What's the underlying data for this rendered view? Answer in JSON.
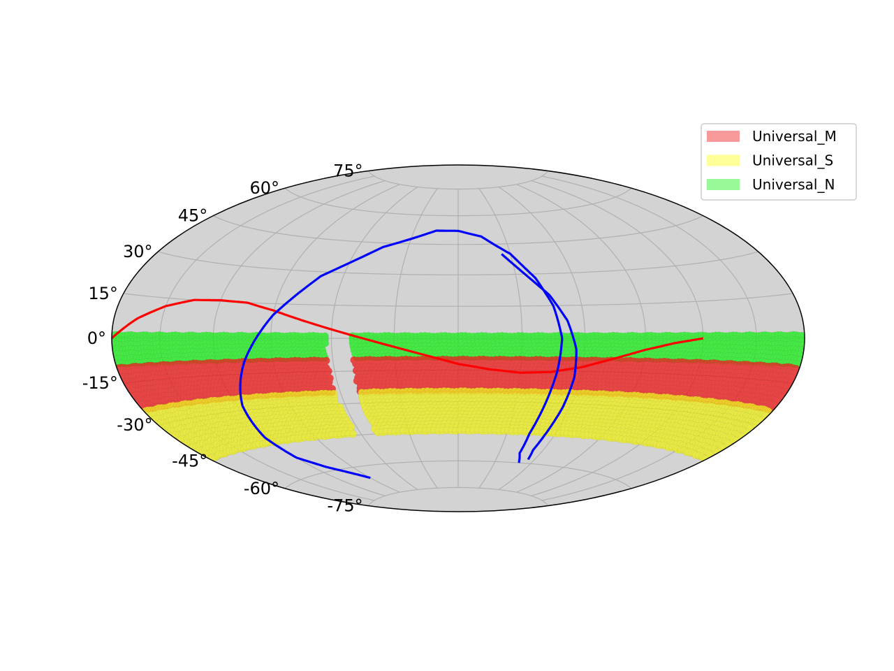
{
  "chart_data": {
    "type": "scatter",
    "projection": "hammer",
    "grid": true,
    "background_color": "#d3d3d3",
    "lat_tick_labels": [
      "75°",
      "60°",
      "45°",
      "30°",
      "15°",
      "0°",
      "-15°",
      "-30°",
      "-45°",
      "-60°",
      "-75°"
    ],
    "lat_ticks": [
      75,
      60,
      45,
      30,
      15,
      0,
      -15,
      -30,
      -45,
      -60,
      -75
    ],
    "lon_grid": [
      -150,
      -120,
      -90,
      -60,
      -30,
      0,
      30,
      60,
      90,
      120,
      150
    ],
    "legend": {
      "placement": "top-right",
      "entries": [
        {
          "label": "Universal_M",
          "color": "#f99a9a"
        },
        {
          "label": "Universal_S",
          "color": "#ffff99"
        },
        {
          "label": "Universal_N",
          "color": "#99f899"
        }
      ]
    },
    "bands": [
      {
        "name": "Universal_N",
        "dec_min": -10,
        "dec_max": 1,
        "color": "#22ee22"
      },
      {
        "name": "Universal_M",
        "dec_min": -25,
        "dec_max": -10,
        "color": "#ee2222"
      },
      {
        "name": "Universal_S",
        "dec_min": -45,
        "dec_max": -25,
        "color": "#eeee22"
      }
    ],
    "gap_lon": [
      -63,
      -50
    ],
    "lines": [
      {
        "name": "red-curve",
        "color": "#ff0000",
        "points": [
          [
            -180,
            0
          ],
          [
            -165,
            7
          ],
          [
            -150,
            12
          ],
          [
            -135,
            15
          ],
          [
            -120,
            15.5
          ],
          [
            -105,
            15
          ],
          [
            -90,
            12
          ],
          [
            -75,
            8
          ],
          [
            -60,
            4
          ],
          [
            -45,
            0
          ],
          [
            -30,
            -4
          ],
          [
            -15,
            -8
          ],
          [
            0,
            -12
          ],
          [
            15,
            -14.5
          ],
          [
            30,
            -16
          ],
          [
            45,
            -15.5
          ],
          [
            60,
            -13
          ],
          [
            75,
            -9
          ],
          [
            90,
            -5
          ],
          [
            105,
            -2
          ],
          [
            120,
            0
          ]
        ]
      },
      {
        "name": "blue-curve-a",
        "color": "#0000ff",
        "points": [
          [
            -110,
            -58
          ],
          [
            -120,
            -52
          ],
          [
            -122,
            -42
          ],
          [
            -117,
            -28
          ],
          [
            -105,
            -10
          ],
          [
            -90,
            10
          ],
          [
            -72,
            28
          ],
          [
            -45,
            43
          ],
          [
            -15,
            52
          ],
          [
            0,
            52
          ],
          [
            15,
            49
          ],
          [
            30,
            40
          ],
          [
            40,
            28
          ],
          [
            46,
            15
          ],
          [
            49,
            0
          ],
          [
            48,
            -15
          ],
          [
            46,
            -30
          ],
          [
            44,
            -45
          ],
          [
            45,
            -55
          ],
          [
            50,
            -60
          ]
        ]
      },
      {
        "name": "blue-curve-b",
        "color": "#0000ff",
        "points": [
          [
            25,
            40
          ],
          [
            35,
            30
          ],
          [
            45,
            20
          ],
          [
            52,
            8
          ],
          [
            56,
            -5
          ],
          [
            57,
            -18
          ],
          [
            56,
            -32
          ],
          [
            54,
            -45
          ],
          [
            53,
            -53
          ],
          [
            55,
            -58
          ]
        ]
      },
      {
        "name": "blue-curve-c",
        "color": "#0000ff",
        "points": [
          [
            -110,
            -58
          ],
          [
            -100,
            -62
          ],
          [
            -90,
            -66
          ]
        ]
      }
    ]
  }
}
